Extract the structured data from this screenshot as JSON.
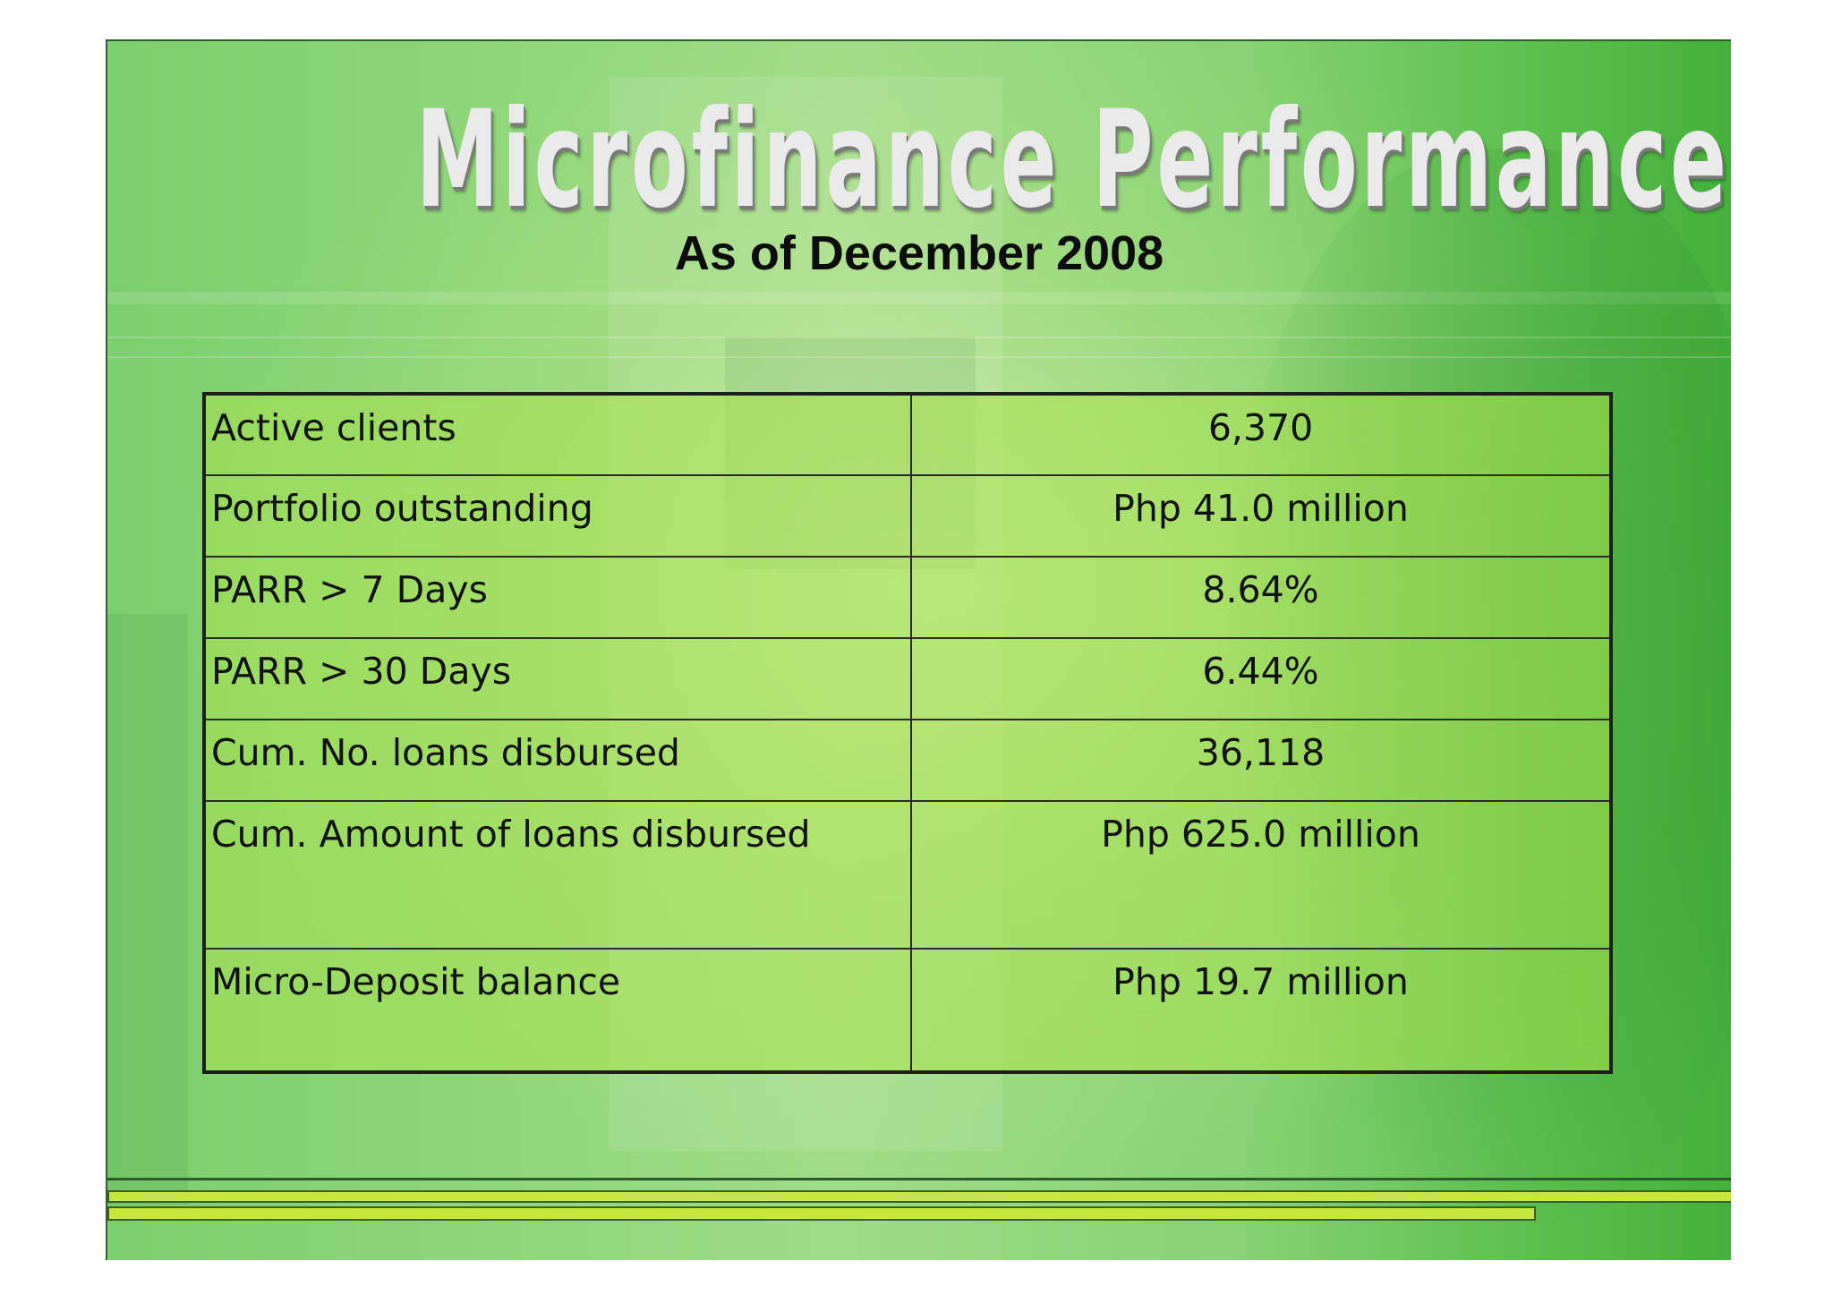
{
  "slide": {
    "title": "Microfinance Performance Status",
    "subtitle": "As of December 2008"
  },
  "table": {
    "rows": [
      {
        "label": "Active clients",
        "value": "6,370"
      },
      {
        "label": "Portfolio outstanding",
        "value": "Php 41.0 million"
      },
      {
        "label": "PARR > 7 Days",
        "value": "8.64%"
      },
      {
        "label": "PARR > 30 Days",
        "value": "6.44%"
      },
      {
        "label": "Cum. No. loans disbursed",
        "value": "36,118"
      },
      {
        "label": "Cum. Amount of loans disbursed",
        "value": "Php 625.0 million"
      },
      {
        "label": "Micro-Deposit balance",
        "value": "Php 19.7 million"
      }
    ]
  },
  "colors": {
    "background_green": "#8fd67a",
    "table_fill": "#aae150",
    "footer_band": "#c8e63c"
  }
}
